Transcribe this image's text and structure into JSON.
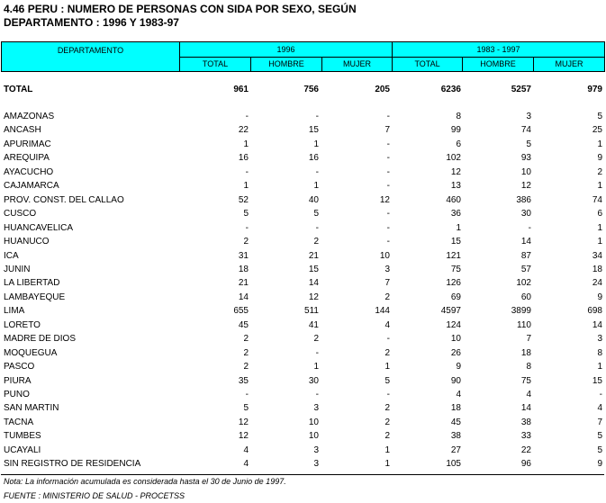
{
  "title": {
    "line1": "4.46  PERU : NUMERO DE PERSONAS  CON SIDA POR SEXO, SEGÚN",
    "line2": "DEPARTAMENTO : 1996 Y 1983-97"
  },
  "header": {
    "departamento": "DEPARTAMENTO",
    "group_1996": "1996",
    "group_1983": "1983 - 1997",
    "cols": [
      "TOTAL",
      "HOMBRE",
      "MUJER",
      "TOTAL",
      "HOMBRE",
      "MUJER"
    ]
  },
  "total": {
    "name": "TOTAL",
    "values": [
      "961",
      "756",
      "205",
      "6236",
      "5257",
      "979"
    ]
  },
  "rows": [
    {
      "name": "AMAZONAS",
      "values": [
        "-",
        "-",
        "-",
        "8",
        "3",
        "5"
      ]
    },
    {
      "name": "ANCASH",
      "values": [
        "22",
        "15",
        "7",
        "99",
        "74",
        "25"
      ]
    },
    {
      "name": "APURIMAC",
      "values": [
        "1",
        "1",
        "-",
        "6",
        "5",
        "1"
      ]
    },
    {
      "name": "AREQUIPA",
      "values": [
        "16",
        "16",
        "-",
        "102",
        "93",
        "9"
      ]
    },
    {
      "name": "AYACUCHO",
      "values": [
        "-",
        "-",
        "-",
        "12",
        "10",
        "2"
      ]
    },
    {
      "name": "CAJAMARCA",
      "values": [
        "1",
        "1",
        "-",
        "13",
        "12",
        "1"
      ]
    },
    {
      "name": "PROV. CONST. DEL CALLAO",
      "values": [
        "52",
        "40",
        "12",
        "460",
        "386",
        "74"
      ]
    },
    {
      "name": "CUSCO",
      "values": [
        "5",
        "5",
        "-",
        "36",
        "30",
        "6"
      ]
    },
    {
      "name": "HUANCAVELICA",
      "values": [
        "-",
        "-",
        "-",
        "1",
        "-",
        "1"
      ]
    },
    {
      "name": "HUANUCO",
      "values": [
        "2",
        "2",
        "-",
        "15",
        "14",
        "1"
      ]
    },
    {
      "name": "ICA",
      "values": [
        "31",
        "21",
        "10",
        "121",
        "87",
        "34"
      ]
    },
    {
      "name": "JUNIN",
      "values": [
        "18",
        "15",
        "3",
        "75",
        "57",
        "18"
      ]
    },
    {
      "name": "LA LIBERTAD",
      "values": [
        "21",
        "14",
        "7",
        "126",
        "102",
        "24"
      ]
    },
    {
      "name": "LAMBAYEQUE",
      "values": [
        "14",
        "12",
        "2",
        "69",
        "60",
        "9"
      ]
    },
    {
      "name": "LIMA",
      "values": [
        "655",
        "511",
        "144",
        "4597",
        "3899",
        "698"
      ]
    },
    {
      "name": "LORETO",
      "values": [
        "45",
        "41",
        "4",
        "124",
        "110",
        "14"
      ]
    },
    {
      "name": "MADRE DE DIOS",
      "values": [
        "2",
        "2",
        "-",
        "10",
        "7",
        "3"
      ]
    },
    {
      "name": "MOQUEGUA",
      "values": [
        "2",
        "-",
        "2",
        "26",
        "18",
        "8"
      ]
    },
    {
      "name": "PASCO",
      "values": [
        "2",
        "1",
        "1",
        "9",
        "8",
        "1"
      ]
    },
    {
      "name": "PIURA",
      "values": [
        "35",
        "30",
        "5",
        "90",
        "75",
        "15"
      ]
    },
    {
      "name": "PUNO",
      "values": [
        "-",
        "-",
        "-",
        "4",
        "4",
        "-"
      ]
    },
    {
      "name": "SAN MARTIN",
      "values": [
        "5",
        "3",
        "2",
        "18",
        "14",
        "4"
      ]
    },
    {
      "name": "TACNA",
      "values": [
        "12",
        "10",
        "2",
        "45",
        "38",
        "7"
      ]
    },
    {
      "name": "TUMBES",
      "values": [
        "12",
        "10",
        "2",
        "38",
        "33",
        "5"
      ]
    },
    {
      "name": "UCAYALI",
      "values": [
        "4",
        "3",
        "1",
        "27",
        "22",
        "5"
      ]
    },
    {
      "name": "SIN REGISTRO DE RESIDENCIA",
      "values": [
        "4",
        "3",
        "1",
        "105",
        "96",
        "9"
      ]
    }
  ],
  "footer": {
    "nota": "Nota: La información acumulada es considerada hasta el 30 de Junio de 1997.",
    "fuente": "FUENTE : MINISTERIO DE SALUD - PROCETSS"
  },
  "colors": {
    "header_bg": "#00ffff"
  }
}
